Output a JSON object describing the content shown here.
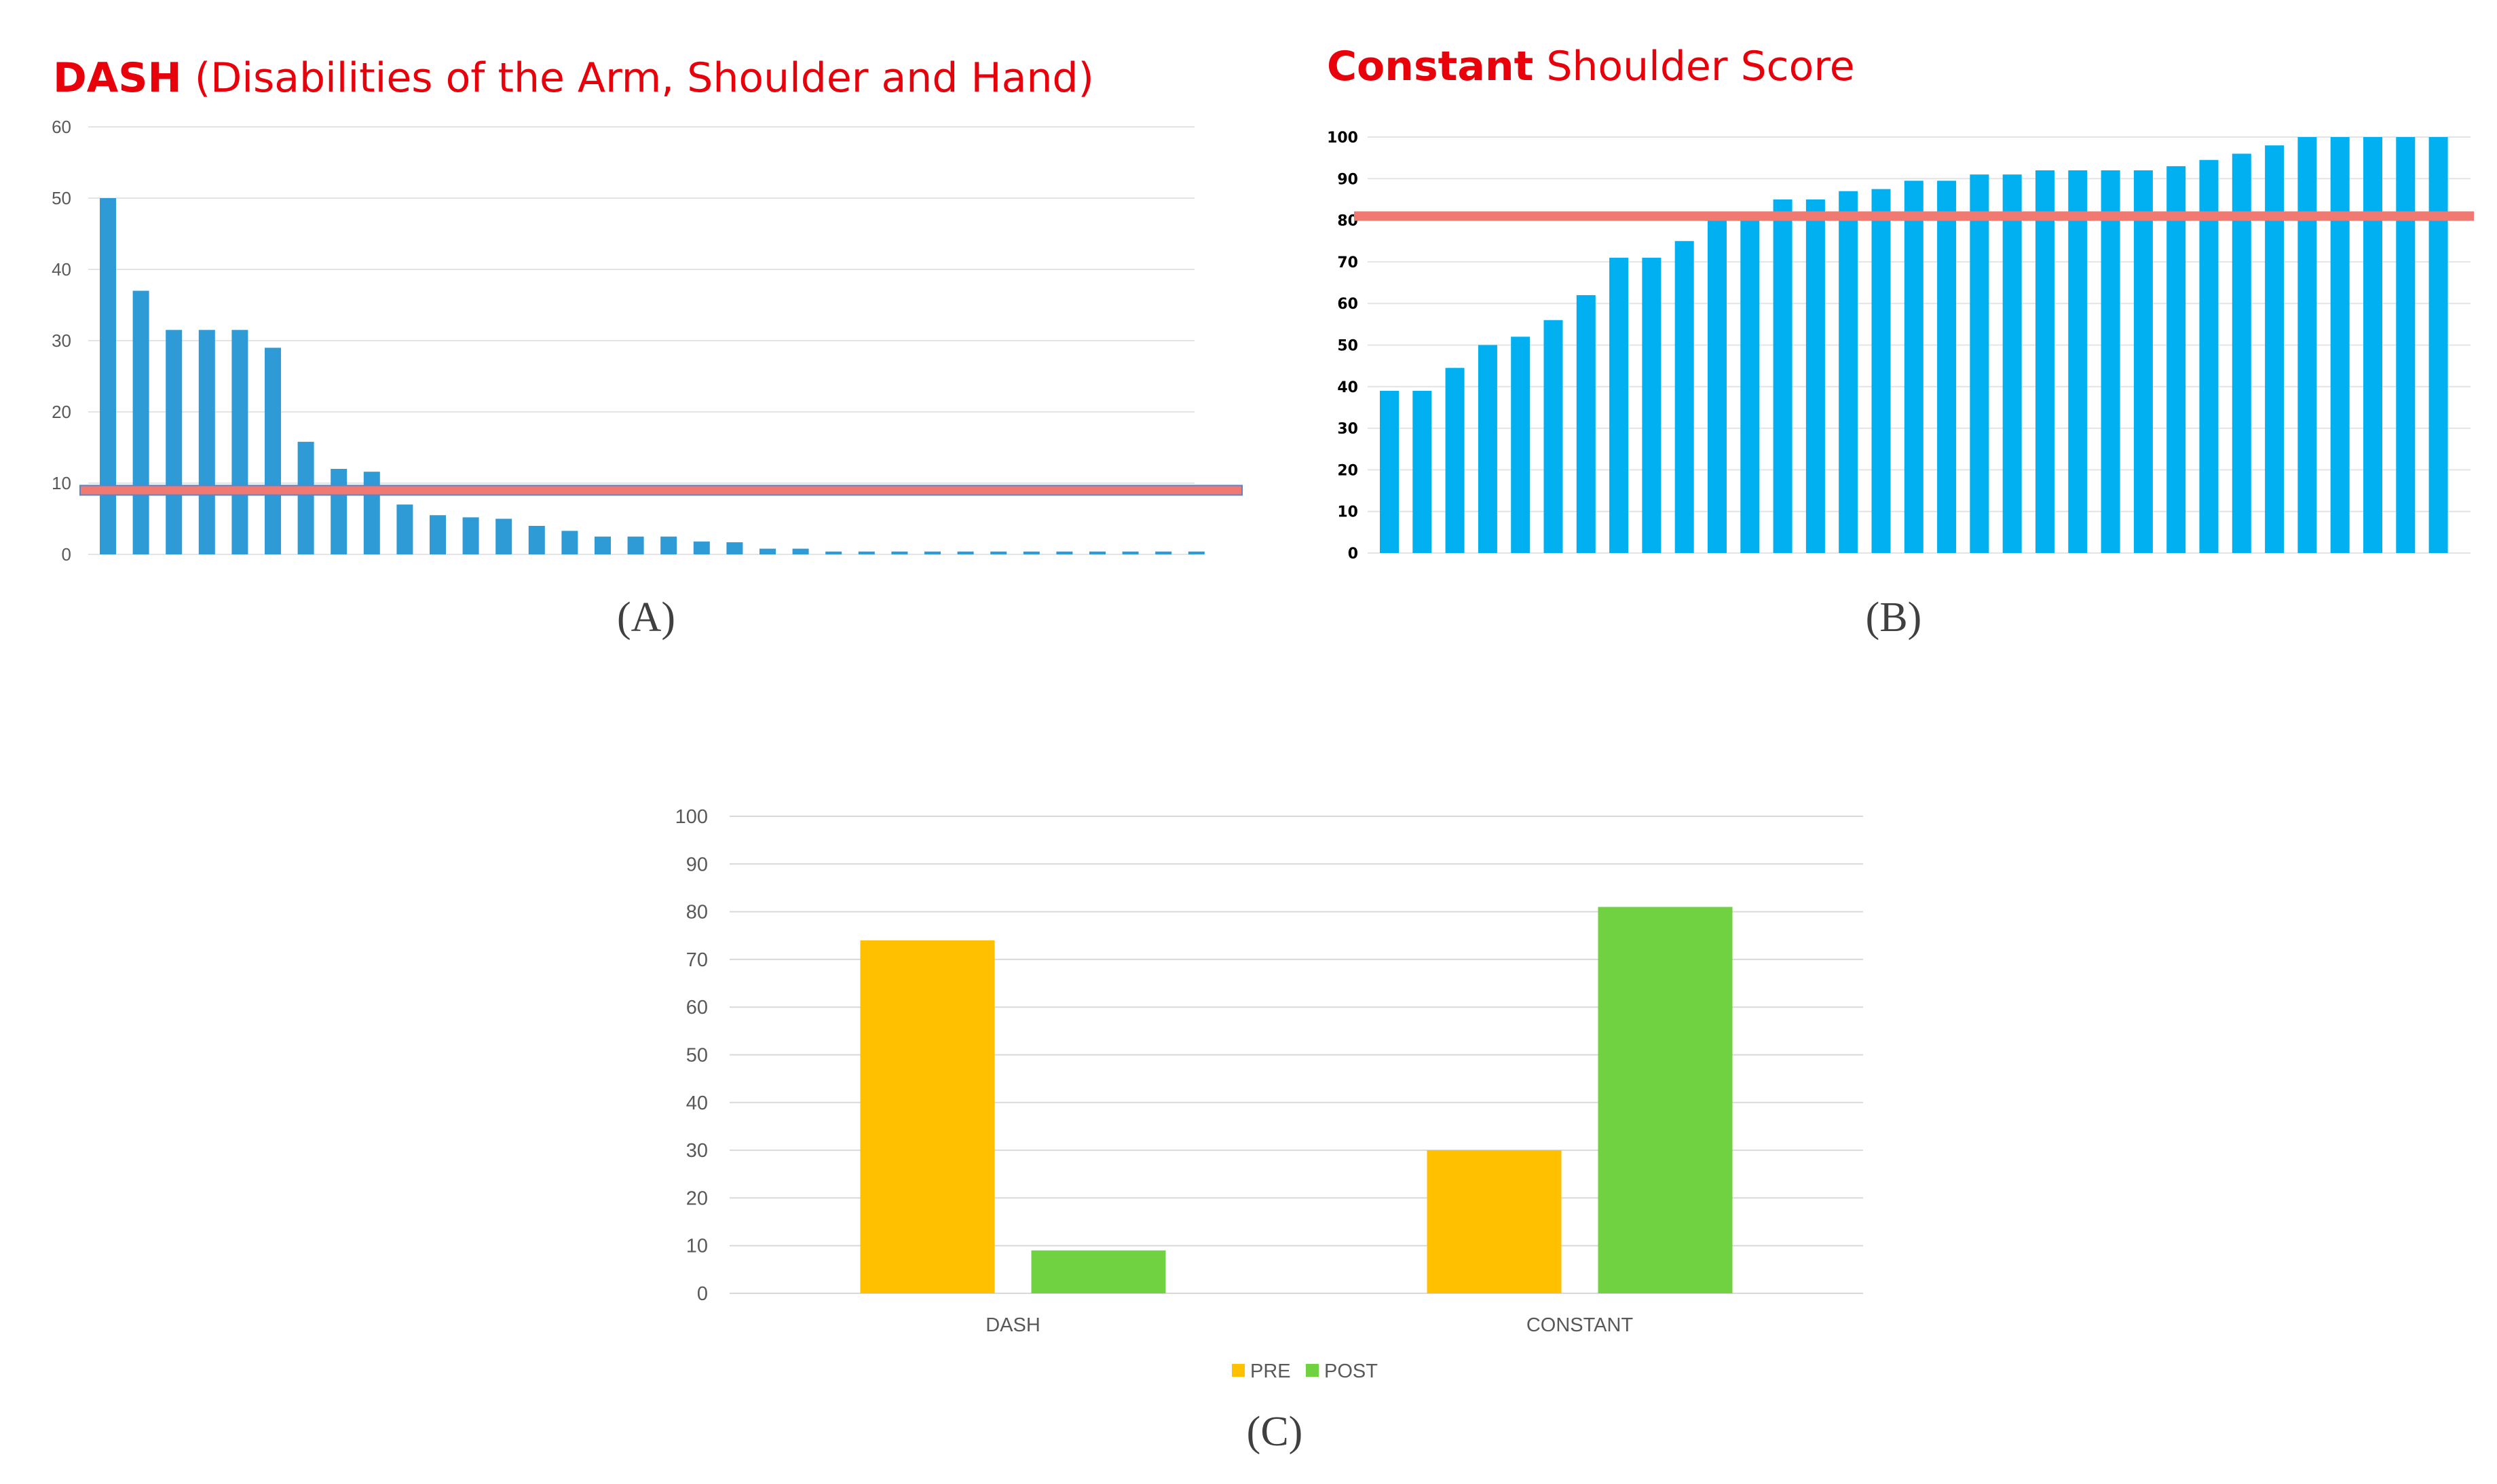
{
  "chart_data": [
    {
      "panel": "(A)",
      "type": "bar",
      "title_bold": "DASH",
      "title_rest": " (Disabilities of the Arm, Shoulder and Hand)",
      "ylim": [
        0,
        60
      ],
      "yticks": [
        "0",
        "10",
        "20",
        "30",
        "40",
        "50",
        "60"
      ],
      "grid": true,
      "bar_color": "#2E9BD6",
      "reference_line": {
        "value": 9,
        "color": "#F07A72"
      },
      "values": [
        50,
        37,
        31.5,
        31.5,
        31.5,
        29,
        15.8,
        12,
        11.6,
        7,
        5.5,
        5.2,
        5,
        4,
        3.3,
        2.5,
        2.5,
        2.5,
        1.8,
        1.7,
        0.8,
        0.8,
        0.4,
        0.4,
        0.4,
        0.4,
        0.4,
        0.4,
        0.4,
        0.4,
        0.4,
        0.4,
        0.4,
        0.4
      ]
    },
    {
      "panel": "(B)",
      "type": "bar",
      "title_bold": "Constant",
      "title_rest": " Shoulder Score",
      "ylim": [
        0,
        100
      ],
      "yticks": [
        "0",
        "10",
        "20",
        "30",
        "40",
        "50",
        "60",
        "70",
        "80",
        "90",
        "100"
      ],
      "grid": true,
      "bar_color": "#00B0F0",
      "reference_line": {
        "value": 81,
        "color": "#F07A72"
      },
      "values": [
        39,
        39,
        44.5,
        50,
        52,
        56,
        62,
        71,
        71,
        75,
        80,
        80,
        85,
        85,
        87,
        87.5,
        89.5,
        89.5,
        91,
        91,
        92,
        92,
        92,
        92,
        93,
        94.5,
        96,
        98,
        100,
        100,
        100,
        100,
        100
      ]
    },
    {
      "panel": "(C)",
      "type": "bar",
      "categories": [
        "DASH",
        "CONSTANT"
      ],
      "series": [
        {
          "name": "PRE",
          "color": "#FFC000",
          "values": [
            74,
            30
          ]
        },
        {
          "name": "POST",
          "color": "#70D141",
          "values": [
            9,
            81
          ]
        }
      ],
      "ylim": [
        0,
        100
      ],
      "yticks": [
        "0",
        "10",
        "20",
        "30",
        "40",
        "50",
        "60",
        "70",
        "80",
        "90",
        "100"
      ],
      "grid": true,
      "legend": "bottom"
    }
  ]
}
